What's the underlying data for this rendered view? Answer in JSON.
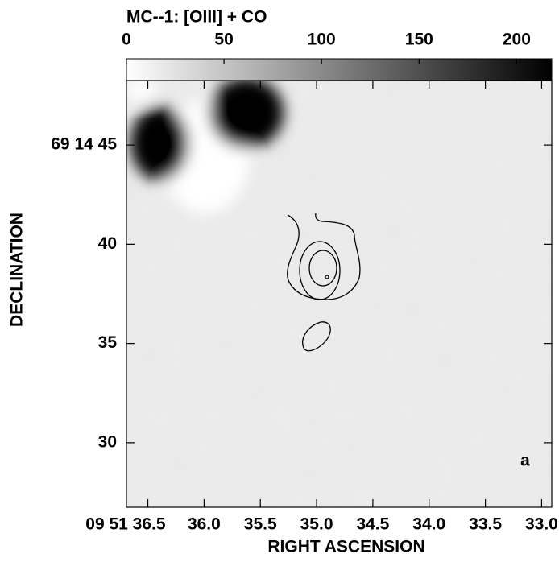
{
  "chart_data": {
    "type": "image",
    "title": "MC--1: [OIII] + CO",
    "x_label": "RIGHT ASCENSION",
    "y_label": "DECLINATION",
    "annotation": "a",
    "xlim": [
      36.69,
      32.91
    ],
    "xticks": [
      {
        "value": 36.5,
        "label": "09 51 36.5"
      },
      {
        "value": 36.0,
        "label": "36.0"
      },
      35.5,
      {
        "value": 35.0,
        "label": "35.0"
      },
      34.5,
      {
        "value": 34.0,
        "label": "34.0"
      },
      33.5,
      {
        "value": 33.0,
        "label": "33.0"
      }
    ],
    "ylim": [
      26.75,
      48.25
    ],
    "yticks": [
      {
        "value": 45,
        "label": "69 14 45"
      },
      40,
      35,
      30
    ],
    "colorbar_lim": [
      0,
      218
    ],
    "colorbar_ticks": [
      0,
      50,
      100,
      150,
      200
    ]
  }
}
